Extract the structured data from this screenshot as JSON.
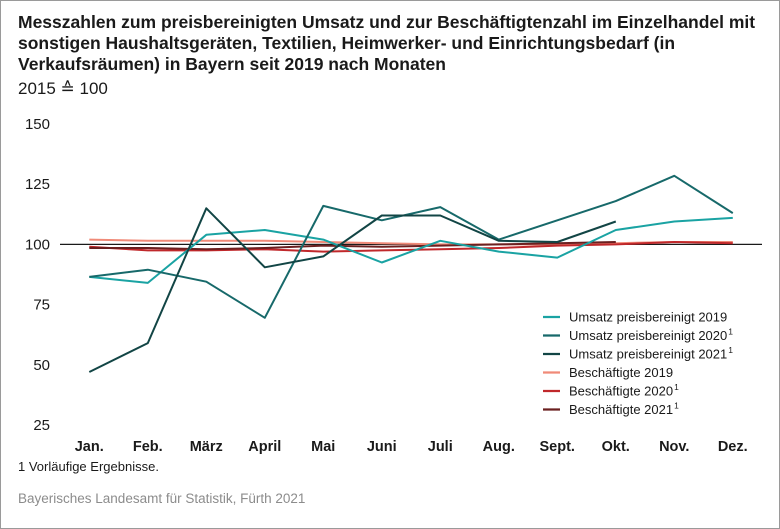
{
  "title": "Messzahlen zum preisbereinigten Umsatz und zur Beschäftigtenzahl im Einzelhandel mit sonstigen Haushaltsgeräten, Textilien, Heimwerker- und Einrichtungsbedarf (in Verkaufsräumen) in Bayern seit 2019 nach Monaten",
  "subtitle": "2015 ≙ 100",
  "footnote": "1  Vorläufige Ergebnisse.",
  "source": "Bayerisches Landesamt für Statistik, Fürth 2021",
  "chart_data": {
    "type": "line",
    "title": "Messzahlen zum preisbereinigten Umsatz und zur Beschäftigtenzahl im Einzelhandel mit sonstigen Haushaltsgeräten, Textilien, Heimwerker- und Einrichtungsbedarf (in Verkaufsräumen) in Bayern seit 2019 nach Monaten",
    "subtitle": "2015 ≙ 100",
    "xlabel": "",
    "ylabel": "",
    "categories": [
      "Jan.",
      "Feb.",
      "März",
      "April",
      "Mai",
      "Juni",
      "Juli",
      "Aug.",
      "Sept.",
      "Okt.",
      "Nov.",
      "Dez."
    ],
    "ylim": [
      25,
      150
    ],
    "yticks": [
      25,
      50,
      75,
      100,
      125,
      150
    ],
    "reference_line": 100,
    "grid": false,
    "legend_position": "bottom-right",
    "series": [
      {
        "name": "Umsatz preisbereinigt 2019",
        "footnote": "",
        "color": "#1aa3a3",
        "values": [
          86.5,
          84,
          104,
          106,
          102,
          92.5,
          101.5,
          97,
          94.5,
          106,
          109.5,
          111
        ]
      },
      {
        "name": "Umsatz preisbereinigt 2020",
        "footnote": "1",
        "color": "#17696a",
        "values": [
          86.5,
          89.5,
          84.5,
          69.5,
          116,
          110,
          115.5,
          102,
          null,
          118,
          128.5,
          113
        ]
      },
      {
        "name": "Umsatz preisbereinigt 2021",
        "footnote": "1",
        "color": "#124545",
        "values": [
          47,
          59,
          115,
          90.5,
          95,
          112,
          112,
          101.5,
          101,
          109.5,
          null,
          null
        ]
      },
      {
        "name": "Beschäftigte 2019",
        "footnote": "",
        "color": "#f08a78",
        "values": [
          102,
          101.5,
          101.5,
          101.5,
          101,
          100.5,
          100,
          100,
          100,
          100.5,
          101,
          101
        ]
      },
      {
        "name": "Beschäftigte 2020",
        "footnote": "1",
        "color": "#c0282b",
        "values": [
          99,
          97.5,
          97.5,
          98,
          97,
          97.5,
          98,
          98.5,
          99.5,
          100,
          101,
          100.5
        ]
      },
      {
        "name": "Beschäftigte 2021",
        "footnote": "1",
        "color": "#6b2020",
        "values": [
          98.5,
          98.5,
          98,
          98.5,
          99.5,
          99,
          99.5,
          100,
          100.5,
          101,
          null,
          null
        ]
      }
    ]
  }
}
